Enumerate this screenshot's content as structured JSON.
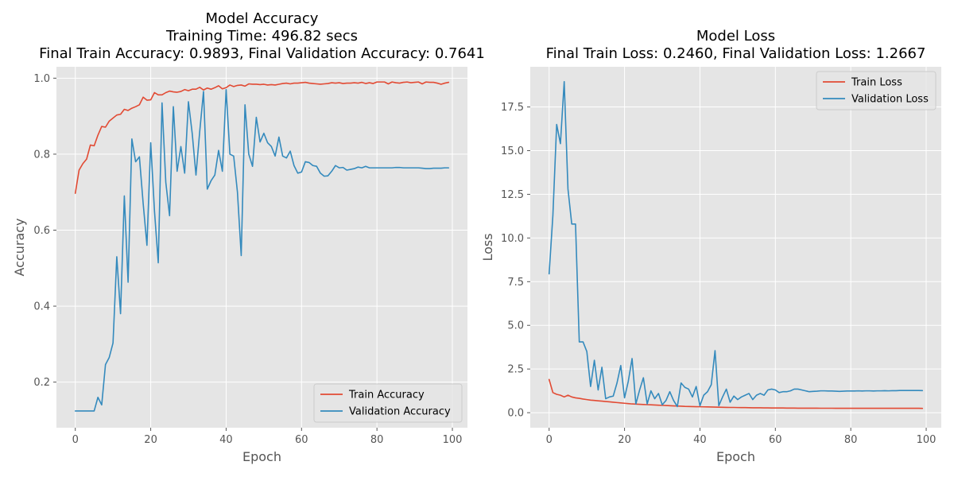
{
  "chart_data": [
    {
      "type": "line",
      "title_lines": [
        "Model Accuracy",
        "Training Time: 496.82 secs",
        "Final Train Accuracy: 0.9893, Final Validation Accuracy: 0.7641"
      ],
      "xlabel": "Epoch",
      "ylabel": "Accuracy",
      "xlim": [
        -5,
        104
      ],
      "ylim": [
        0.08,
        1.03
      ],
      "xticks": [
        0,
        20,
        40,
        60,
        80,
        100
      ],
      "yticks": [
        0.2,
        0.4,
        0.6,
        0.8,
        1.0
      ],
      "xtick_labels": [
        "0",
        "20",
        "40",
        "60",
        "80",
        "100"
      ],
      "ytick_labels": [
        "0.2",
        "0.4",
        "0.6",
        "0.8",
        "1.0"
      ],
      "grid": true,
      "legend_position": "lower-right",
      "series": [
        {
          "name": "Train Accuracy",
          "color": "#E24A33",
          "values": [
            0.697,
            0.758,
            0.775,
            0.787,
            0.824,
            0.822,
            0.85,
            0.873,
            0.871,
            0.887,
            0.895,
            0.903,
            0.905,
            0.918,
            0.915,
            0.921,
            0.925,
            0.93,
            0.95,
            0.942,
            0.943,
            0.962,
            0.956,
            0.956,
            0.962,
            0.966,
            0.964,
            0.963,
            0.965,
            0.97,
            0.967,
            0.971,
            0.971,
            0.976,
            0.969,
            0.974,
            0.971,
            0.975,
            0.98,
            0.972,
            0.975,
            0.982,
            0.978,
            0.981,
            0.982,
            0.979,
            0.985,
            0.984,
            0.984,
            0.983,
            0.984,
            0.982,
            0.983,
            0.982,
            0.984,
            0.986,
            0.987,
            0.985,
            0.987,
            0.987,
            0.988,
            0.989,
            0.987,
            0.986,
            0.985,
            0.984,
            0.985,
            0.986,
            0.988,
            0.987,
            0.988,
            0.986,
            0.987,
            0.987,
            0.988,
            0.987,
            0.989,
            0.986,
            0.988,
            0.986,
            0.99,
            0.99,
            0.99,
            0.985,
            0.99,
            0.988,
            0.987,
            0.989,
            0.99,
            0.988,
            0.989,
            0.99,
            0.985,
            0.99,
            0.989,
            0.989,
            0.987,
            0.984,
            0.987,
            0.989
          ]
        },
        {
          "name": "Validation Accuracy",
          "color": "#348ABD",
          "values": [
            0.124,
            0.124,
            0.124,
            0.124,
            0.124,
            0.124,
            0.16,
            0.14,
            0.246,
            0.265,
            0.303,
            0.53,
            0.38,
            0.69,
            0.463,
            0.84,
            0.78,
            0.793,
            0.67,
            0.56,
            0.83,
            0.65,
            0.514,
            0.935,
            0.726,
            0.638,
            0.925,
            0.755,
            0.82,
            0.75,
            0.938,
            0.855,
            0.745,
            0.86,
            0.965,
            0.708,
            0.73,
            0.745,
            0.81,
            0.755,
            0.97,
            0.8,
            0.795,
            0.7,
            0.533,
            0.93,
            0.8,
            0.768,
            0.897,
            0.832,
            0.855,
            0.83,
            0.82,
            0.795,
            0.845,
            0.795,
            0.79,
            0.808,
            0.77,
            0.75,
            0.753,
            0.78,
            0.778,
            0.77,
            0.768,
            0.75,
            0.742,
            0.743,
            0.755,
            0.77,
            0.764,
            0.765,
            0.758,
            0.76,
            0.762,
            0.766,
            0.764,
            0.768,
            0.764,
            0.764,
            0.764,
            0.764,
            0.764,
            0.764,
            0.764,
            0.765,
            0.765,
            0.764,
            0.764,
            0.764,
            0.764,
            0.764,
            0.763,
            0.762,
            0.762,
            0.763,
            0.763,
            0.763,
            0.764,
            0.764
          ]
        }
      ]
    },
    {
      "type": "line",
      "title_lines": [
        "Model Loss",
        "Final Train Loss: 0.2460, Final Validation Loss: 1.2667"
      ],
      "xlabel": "Epoch",
      "ylabel": "Loss",
      "xlim": [
        -5,
        104
      ],
      "ylim": [
        -0.86,
        19.8
      ],
      "xticks": [
        0,
        20,
        40,
        60,
        80,
        100
      ],
      "yticks": [
        0.0,
        2.5,
        5.0,
        7.5,
        10.0,
        12.5,
        15.0,
        17.5
      ],
      "xtick_labels": [
        "0",
        "20",
        "40",
        "60",
        "80",
        "100"
      ],
      "ytick_labels": [
        "0.0",
        "2.5",
        "5.0",
        "7.5",
        "10.0",
        "12.5",
        "15.0",
        "17.5"
      ],
      "grid": true,
      "legend_position": "upper-right",
      "series": [
        {
          "name": "Train Loss",
          "color": "#E24A33",
          "values": [
            1.9,
            1.15,
            1.05,
            1.0,
            0.9,
            1.0,
            0.9,
            0.85,
            0.82,
            0.78,
            0.75,
            0.72,
            0.7,
            0.68,
            0.66,
            0.64,
            0.62,
            0.6,
            0.58,
            0.56,
            0.54,
            0.52,
            0.5,
            0.49,
            0.48,
            0.47,
            0.46,
            0.45,
            0.44,
            0.43,
            0.42,
            0.41,
            0.4,
            0.39,
            0.38,
            0.37,
            0.36,
            0.355,
            0.35,
            0.345,
            0.34,
            0.335,
            0.33,
            0.325,
            0.32,
            0.315,
            0.31,
            0.305,
            0.3,
            0.3,
            0.295,
            0.29,
            0.29,
            0.285,
            0.28,
            0.28,
            0.28,
            0.275,
            0.275,
            0.27,
            0.27,
            0.27,
            0.27,
            0.265,
            0.265,
            0.265,
            0.26,
            0.26,
            0.26,
            0.26,
            0.26,
            0.26,
            0.255,
            0.255,
            0.255,
            0.255,
            0.25,
            0.25,
            0.25,
            0.25,
            0.25,
            0.25,
            0.25,
            0.25,
            0.25,
            0.25,
            0.25,
            0.25,
            0.25,
            0.25,
            0.25,
            0.25,
            0.25,
            0.25,
            0.25,
            0.25,
            0.25,
            0.25,
            0.25,
            0.246
          ]
        },
        {
          "name": "Validation Loss",
          "color": "#348ABD",
          "values": [
            7.95,
            11.3,
            16.5,
            15.4,
            18.95,
            12.8,
            10.8,
            10.8,
            4.05,
            4.05,
            3.5,
            1.5,
            3.0,
            1.3,
            2.6,
            0.8,
            0.9,
            0.95,
            1.7,
            2.7,
            0.85,
            1.8,
            3.1,
            0.5,
            1.3,
            2.0,
            0.5,
            1.25,
            0.8,
            1.1,
            0.45,
            0.7,
            1.2,
            0.7,
            0.35,
            1.7,
            1.45,
            1.35,
            0.9,
            1.5,
            0.4,
            1.0,
            1.2,
            1.6,
            3.55,
            0.4,
            0.9,
            1.35,
            0.6,
            0.95,
            0.75,
            0.9,
            1.0,
            1.1,
            0.75,
            1.0,
            1.1,
            1.0,
            1.3,
            1.35,
            1.3,
            1.15,
            1.2,
            1.2,
            1.25,
            1.35,
            1.35,
            1.3,
            1.25,
            1.2,
            1.22,
            1.23,
            1.25,
            1.25,
            1.24,
            1.24,
            1.23,
            1.22,
            1.23,
            1.24,
            1.24,
            1.24,
            1.25,
            1.24,
            1.25,
            1.25,
            1.24,
            1.25,
            1.25,
            1.26,
            1.25,
            1.26,
            1.26,
            1.27,
            1.27,
            1.27,
            1.27,
            1.27,
            1.27,
            1.2667
          ]
        }
      ]
    }
  ]
}
